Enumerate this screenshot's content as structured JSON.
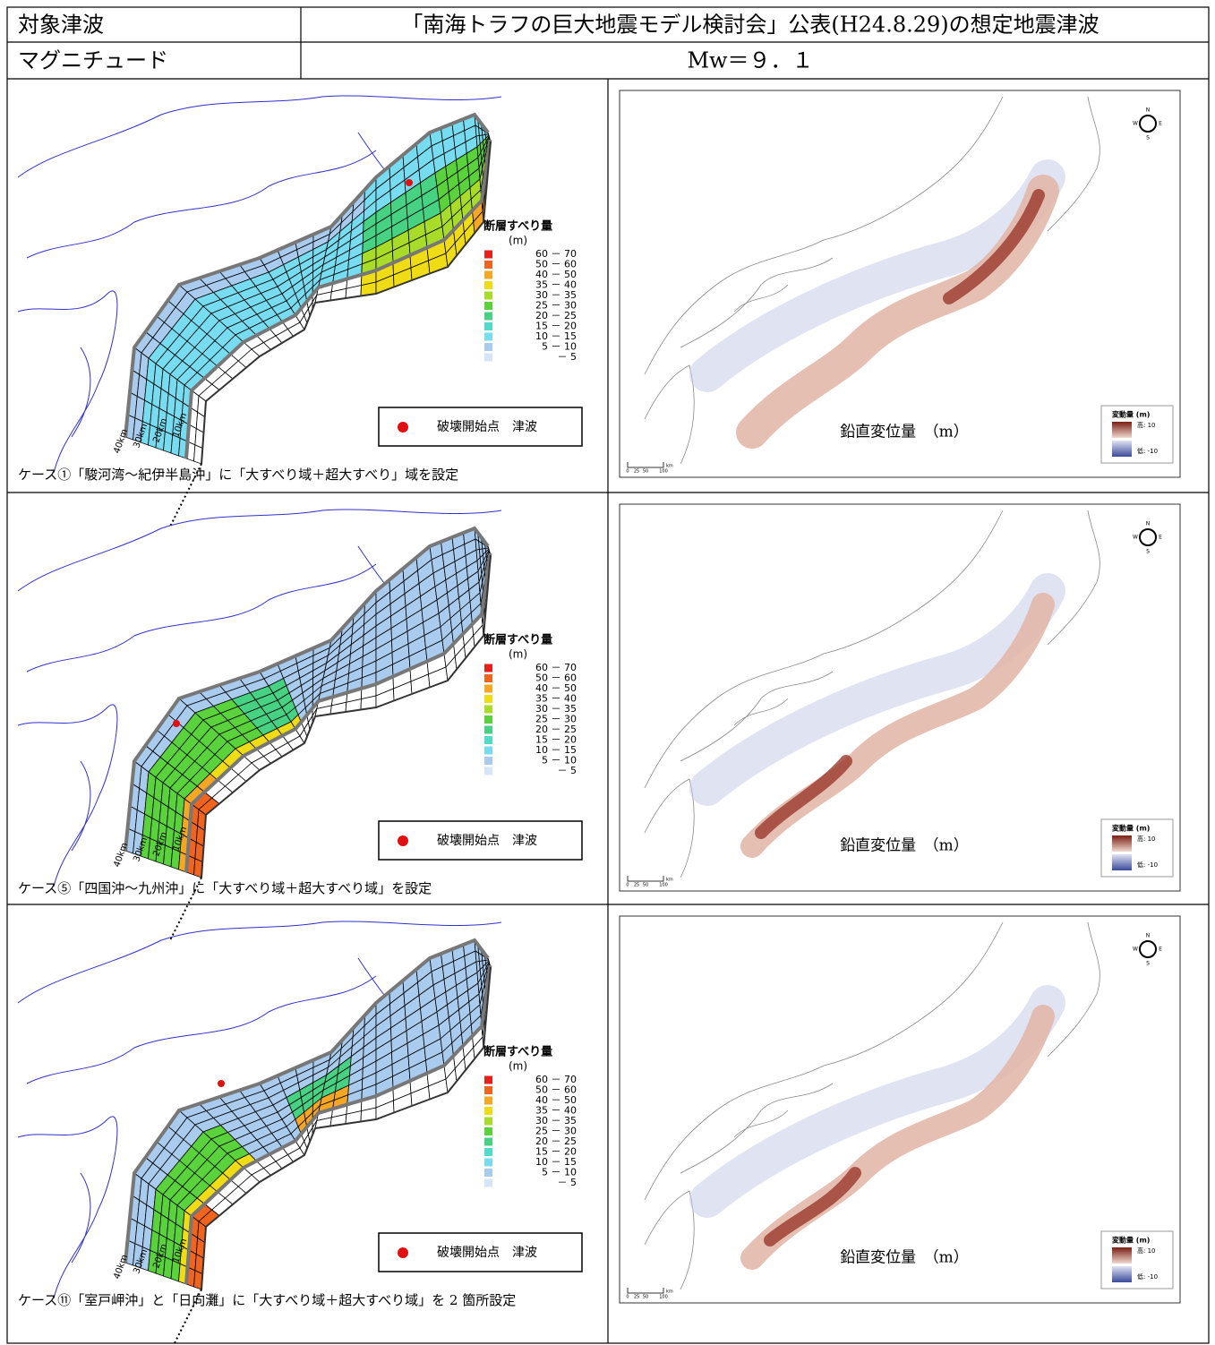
{
  "table": {
    "rows": [
      [
        "対象津波",
        "「南海トラフの巨大地震モデル検討会」公表(H24.8.29)の想定地震津波"
      ],
      [
        "マグニチュード",
        "Mw＝９．１"
      ]
    ]
  },
  "slip_legend": {
    "title": "断層すべり量",
    "unit": "(m)",
    "items": [
      {
        "label": "60 － 70",
        "color": "#e8201a"
      },
      {
        "label": "50 － 60",
        "color": "#f0641e"
      },
      {
        "label": "40 － 50",
        "color": "#f5a623"
      },
      {
        "label": "35 － 40",
        "color": "#f0dc14"
      },
      {
        "label": "30 － 35",
        "color": "#a8dc28"
      },
      {
        "label": "25 － 30",
        "color": "#5ad23c"
      },
      {
        "label": "20 － 25",
        "color": "#46d282"
      },
      {
        "label": "15 － 20",
        "color": "#50dcc8"
      },
      {
        "label": "10 － 15",
        "color": "#78dcf0"
      },
      {
        "label": "5 － 10",
        "color": "#a8cbee"
      },
      {
        "label": "－ 5",
        "color": "#d6e6f8"
      }
    ]
  },
  "depth_labels": [
    "40km",
    "30km",
    "20km",
    "10km"
  ],
  "marker_legend": {
    "label": "破壊開始点　津波"
  },
  "displacement": {
    "title": "鉛直変位量　（m）",
    "legend_title": "変動量 (m)",
    "high": "高: 10",
    "low": "低: -10",
    "scale": [
      "0",
      "25",
      "50",
      "100"
    ],
    "scale_unit": "km",
    "compass": [
      "N",
      "W",
      "E",
      "S"
    ]
  },
  "cases": [
    {
      "caption": "ケース①「駿河湾～紀伊半島沖」に「大すべり域＋超大すべり」域を設定"
    },
    {
      "caption": "ケース⑤「四国沖～九州沖」に「大すべり域＋超大すべり域」を設定"
    },
    {
      "caption": "ケース⑪「室戸岬沖」と「日向灘」に「大すべり域＋超大すべり域」を 2 箇所設定"
    }
  ]
}
